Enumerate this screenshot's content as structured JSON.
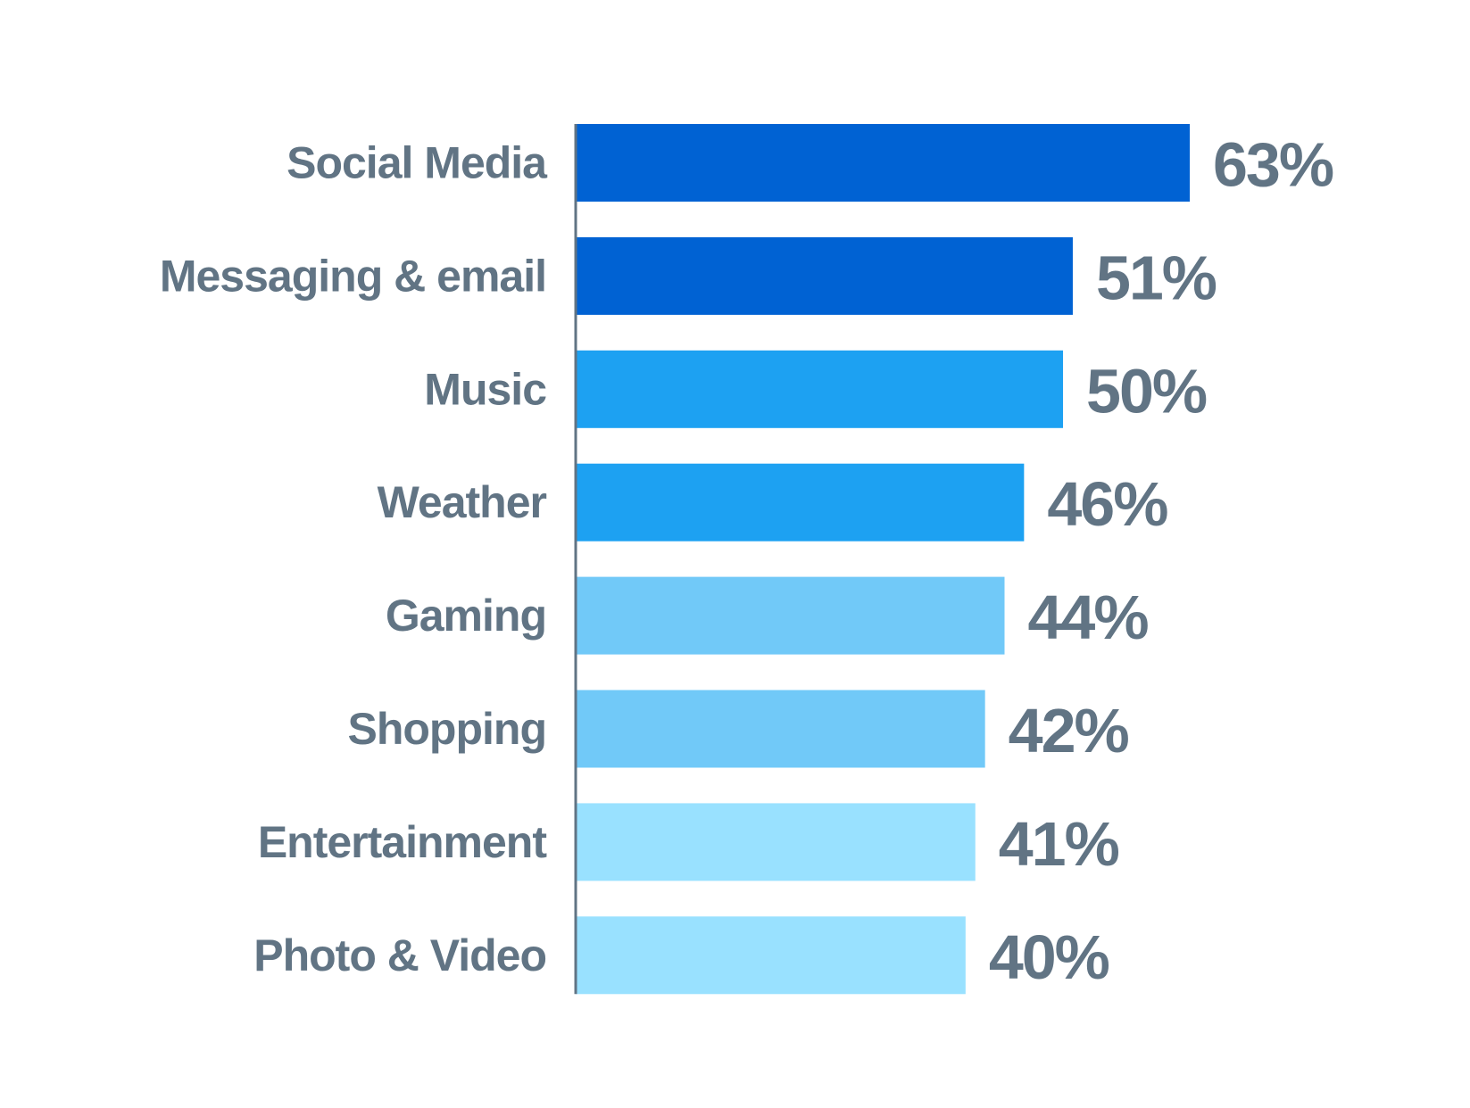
{
  "chart_data": {
    "type": "bar",
    "orientation": "horizontal",
    "categories": [
      "Social Media",
      "Messaging & email",
      "Music",
      "Weather",
      "Gaming",
      "Shopping",
      "Entertainment",
      "Photo & Video"
    ],
    "values": [
      63,
      51,
      50,
      46,
      44,
      42,
      41,
      40
    ],
    "value_labels": [
      "63%",
      "51%",
      "50%",
      "46%",
      "44%",
      "42%",
      "41%",
      "40%"
    ],
    "unit": "%",
    "title": "",
    "xlabel": "",
    "ylabel": "",
    "xlim": [
      0,
      63
    ],
    "grid": false,
    "legend": "none",
    "colors": {
      "bars": [
        "#0062d3",
        "#0062d3",
        "#1da1f2",
        "#1da1f2",
        "#71c9f8",
        "#71c9f8",
        "#99e1ff",
        "#99e1ff"
      ],
      "text": "#617484",
      "axis": "#617484"
    }
  }
}
